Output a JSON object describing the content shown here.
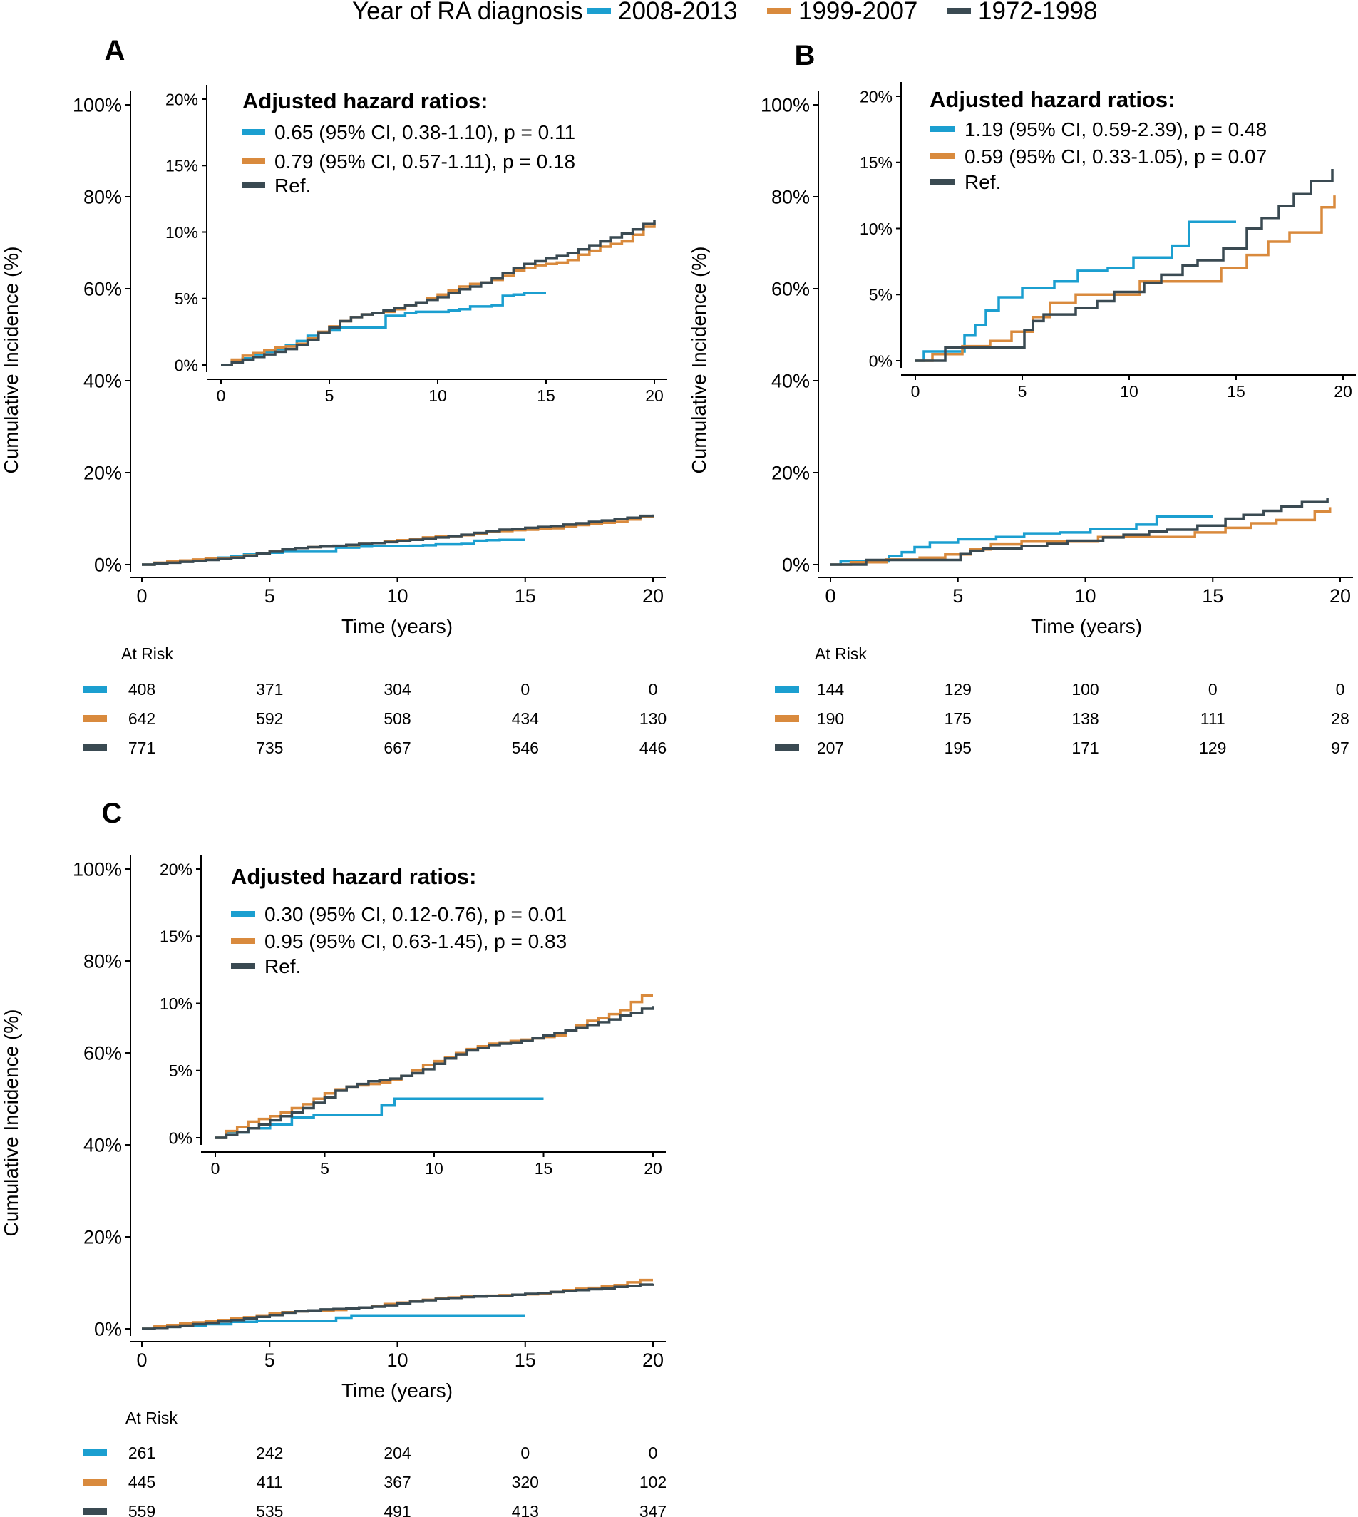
{
  "legend": {
    "title": "Year of RA diagnosis",
    "entries": [
      {
        "label": "2008-2013",
        "color": "#1b9fd0"
      },
      {
        "label": "1999-2007",
        "color": "#d98a3d"
      },
      {
        "label": "1972-1998",
        "color": "#3a4a52"
      }
    ]
  },
  "chart_data": [
    {
      "panel": "A",
      "type": "line",
      "step": true,
      "xlabel": "Time (years)",
      "ylabel": "Cumulative Incidence (%)",
      "xlim": [
        0,
        20
      ],
      "ylim": [
        0,
        100
      ],
      "xticks": [
        "0",
        "5",
        "10",
        "15",
        "20"
      ],
      "yticks": [
        "0%",
        "20%",
        "40%",
        "60%",
        "80%",
        "100%"
      ],
      "series": [
        {
          "name": "2008-2013",
          "x": [
            0,
            0.5,
            1,
            1.5,
            2,
            2.5,
            3,
            3.5,
            4,
            4.5,
            5,
            5.5,
            6,
            6.5,
            7,
            7.5,
            7.6,
            8,
            8.5,
            9,
            9.5,
            10,
            10.5,
            11,
            11.5,
            12,
            12.5,
            13,
            13.5,
            14,
            14.5,
            15
          ],
          "y": [
            0,
            0.3,
            0.5,
            0.8,
            1,
            1.2,
            1.5,
            1.8,
            2.2,
            2.4,
            2.6,
            2.8,
            2.8,
            2.8,
            2.8,
            2.8,
            3.7,
            3.7,
            3.9,
            4,
            4,
            4,
            4.1,
            4.2,
            4.4,
            4.4,
            4.5,
            5.2,
            5.3,
            5.4,
            5.4,
            5.4
          ]
        },
        {
          "name": "1999-2007",
          "x": [
            0,
            0.5,
            1,
            1.5,
            2,
            2.5,
            3,
            3.5,
            4,
            4.5,
            5,
            5.5,
            6,
            6.5,
            7,
            7.5,
            8,
            8.5,
            9,
            9.5,
            10,
            10.5,
            11,
            11.5,
            12,
            12.5,
            13,
            13.5,
            14,
            14.5,
            15,
            15.5,
            16,
            16.5,
            17,
            17.5,
            18,
            18.5,
            19,
            19.5,
            20
          ],
          "y": [
            0,
            0.4,
            0.7,
            0.9,
            1.1,
            1.3,
            1.4,
            1.6,
            2,
            2.5,
            2.9,
            3.3,
            3.6,
            3.8,
            3.9,
            4,
            4.2,
            4.5,
            4.7,
            5,
            5.3,
            5.6,
            5.9,
            6.1,
            6.2,
            6.4,
            6.7,
            7.1,
            7.3,
            7.5,
            7.6,
            7.7,
            7.9,
            8.3,
            8.6,
            8.9,
            9.1,
            9.3,
            9.8,
            10.4,
            10.7
          ]
        },
        {
          "name": "1972-1998",
          "x": [
            0,
            0.5,
            1,
            1.5,
            2,
            2.5,
            3,
            3.5,
            4,
            4.5,
            5,
            5.5,
            6,
            6.5,
            7,
            7.5,
            8,
            8.5,
            9,
            9.5,
            10,
            10.5,
            11,
            11.5,
            12,
            12.5,
            13,
            13.5,
            14,
            14.5,
            15,
            15.5,
            16,
            16.5,
            17,
            17.5,
            18,
            18.5,
            19,
            19.5,
            20
          ],
          "y": [
            0,
            0.2,
            0.4,
            0.6,
            0.8,
            1,
            1.2,
            1.5,
            1.9,
            2.4,
            2.8,
            3.3,
            3.6,
            3.8,
            3.9,
            4.1,
            4.3,
            4.5,
            4.7,
            4.9,
            5.1,
            5.4,
            5.7,
            5.9,
            6.2,
            6.5,
            6.9,
            7.3,
            7.6,
            7.8,
            8,
            8.2,
            8.4,
            8.7,
            9,
            9.3,
            9.6,
            9.9,
            10.2,
            10.6,
            10.9
          ]
        }
      ],
      "inset": {
        "xlim": [
          0,
          20
        ],
        "ylim": [
          0,
          20
        ],
        "xticks": [
          "0",
          "5",
          "10",
          "15",
          "20"
        ],
        "yticks": [
          "0%",
          "5%",
          "10%",
          "15%",
          "20%"
        ]
      },
      "hazard_ratios": {
        "title": "Adjusted hazard ratios:",
        "entries": [
          "0.65 (95% CI, 0.38-1.10), p = 0.11",
          "0.79 (95% CI, 0.57-1.11), p = 0.18",
          "Ref."
        ]
      },
      "at_risk": {
        "title": "At Risk",
        "times": [
          0,
          5,
          10,
          15,
          20
        ],
        "rows": [
          [
            "408",
            "371",
            "304",
            "0",
            "0"
          ],
          [
            "642",
            "592",
            "508",
            "434",
            "130"
          ],
          [
            "771",
            "735",
            "667",
            "546",
            "446"
          ]
        ]
      }
    },
    {
      "panel": "B",
      "type": "line",
      "step": true,
      "xlabel": "Time (years)",
      "ylabel": "Cumulative Incidence (%)",
      "xlim": [
        0,
        20
      ],
      "ylim": [
        0,
        100
      ],
      "xticks": [
        "0",
        "5",
        "10",
        "15",
        "20"
      ],
      "yticks": [
        "0%",
        "20%",
        "40%",
        "60%",
        "80%",
        "100%"
      ],
      "series": [
        {
          "name": "2008-2013",
          "x": [
            0,
            0.4,
            2,
            2.3,
            2.8,
            3.3,
            3.9,
            5,
            6.5,
            7.6,
            9,
            10.2,
            12,
            12.8,
            15
          ],
          "y": [
            0,
            0.7,
            0.7,
            1.9,
            2.7,
            3.8,
            4.8,
            5.5,
            6,
            6.8,
            7,
            7.8,
            8.7,
            10.5,
            10.5
          ]
        },
        {
          "name": "1999-2007",
          "x": [
            0,
            0.8,
            2.2,
            3.5,
            4.5,
            5.5,
            6.3,
            7.5,
            9,
            10.5,
            12,
            14.3,
            15.5,
            16.5,
            17.5,
            19,
            19.6
          ],
          "y": [
            0,
            0.5,
            1.1,
            1.5,
            2.2,
            3.3,
            4.4,
            5,
            5,
            6,
            6,
            7,
            8,
            9,
            9.7,
            11.6,
            12.5
          ]
        },
        {
          "name": "1972-1998",
          "x": [
            0,
            1.4,
            2.4,
            3.4,
            5.1,
            5.5,
            6,
            7.5,
            8.5,
            9.3,
            10.7,
            11.5,
            12.5,
            13.2,
            14.4,
            15.5,
            16.2,
            17,
            17.7,
            18.5,
            19.5
          ],
          "y": [
            0,
            1,
            1,
            1,
            2.3,
            3,
            3.5,
            4,
            4.5,
            5.2,
            5.9,
            6.5,
            7.2,
            7.6,
            8.5,
            10,
            10.8,
            11.7,
            12.6,
            13.6,
            14.5
          ]
        }
      ],
      "inset": {
        "xlim": [
          0,
          20
        ],
        "ylim": [
          0,
          20
        ],
        "xticks": [
          "0",
          "5",
          "10",
          "15",
          "20"
        ],
        "yticks": [
          "0%",
          "5%",
          "10%",
          "15%",
          "20%"
        ]
      },
      "hazard_ratios": {
        "title": "Adjusted hazard ratios:",
        "entries": [
          "1.19 (95% CI, 0.59-2.39), p = 0.48",
          "0.59 (95% CI, 0.33-1.05), p = 0.07",
          "Ref."
        ]
      },
      "at_risk": {
        "title": "At Risk",
        "times": [
          0,
          5,
          10,
          15,
          20
        ],
        "rows": [
          [
            "144",
            "129",
            "100",
            "0",
            "0"
          ],
          [
            "190",
            "175",
            "138",
            "111",
            "28"
          ],
          [
            "207",
            "195",
            "171",
            "129",
            "97"
          ]
        ]
      }
    },
    {
      "panel": "C",
      "type": "line",
      "step": true,
      "xlabel": "Time (years)",
      "ylabel": "Cumulative Incidence (%)",
      "xlim": [
        0,
        20
      ],
      "ylim": [
        0,
        100
      ],
      "xticks": [
        "0",
        "5",
        "10",
        "15",
        "20"
      ],
      "yticks": [
        "0%",
        "20%",
        "40%",
        "60%",
        "80%",
        "100%"
      ],
      "series": [
        {
          "name": "2008-2013",
          "x": [
            0,
            0.5,
            1.5,
            2.5,
            3.5,
            4.5,
            5.5,
            6.5,
            7.6,
            8.2,
            9,
            10,
            11,
            12,
            13,
            14,
            15
          ],
          "y": [
            0,
            0.4,
            0.7,
            1,
            1.5,
            1.7,
            1.7,
            1.7,
            2.4,
            2.9,
            2.9,
            2.9,
            2.9,
            2.9,
            2.9,
            2.9,
            2.9
          ]
        },
        {
          "name": "1999-2007",
          "x": [
            0,
            0.5,
            1,
            1.5,
            2,
            2.5,
            3,
            3.5,
            4,
            4.5,
            5,
            5.5,
            6,
            6.5,
            7,
            7.5,
            8,
            8.5,
            9,
            9.5,
            10,
            10.5,
            11,
            11.5,
            12,
            12.5,
            13,
            13.5,
            14,
            14.5,
            15,
            15.5,
            16,
            16.5,
            17,
            17.5,
            18,
            18.5,
            19,
            19.5,
            20
          ],
          "y": [
            0,
            0.5,
            0.8,
            1.2,
            1.4,
            1.6,
            1.9,
            2.2,
            2.5,
            2.9,
            3.3,
            3.6,
            3.8,
            3.9,
            4,
            4.1,
            4.3,
            4.6,
            5,
            5.4,
            5.7,
            6,
            6.3,
            6.6,
            6.8,
            7,
            7.1,
            7.2,
            7.3,
            7.4,
            7.5,
            7.6,
            8,
            8.4,
            8.7,
            8.9,
            9.2,
            9.5,
            10.1,
            10.6,
            10.6
          ]
        },
        {
          "name": "1972-1998",
          "x": [
            0,
            0.5,
            1,
            1.5,
            2,
            2.5,
            3,
            3.5,
            4,
            4.5,
            5,
            5.5,
            6,
            6.5,
            7,
            7.5,
            8,
            8.5,
            9,
            9.5,
            10,
            10.5,
            11,
            11.5,
            12,
            12.5,
            13,
            13.5,
            14,
            14.5,
            15,
            15.5,
            16,
            16.5,
            17,
            17.5,
            18,
            18.5,
            19,
            19.5,
            20
          ],
          "y": [
            0,
            0.2,
            0.4,
            0.7,
            1,
            1.3,
            1.6,
            1.9,
            2.2,
            2.6,
            3,
            3.5,
            3.8,
            4,
            4.2,
            4.3,
            4.4,
            4.6,
            4.8,
            5.1,
            5.5,
            5.9,
            6.2,
            6.5,
            6.7,
            6.9,
            7,
            7.1,
            7.2,
            7.4,
            7.6,
            7.8,
            8,
            8.2,
            8.4,
            8.6,
            8.8,
            9.1,
            9.3,
            9.6,
            9.8
          ]
        }
      ],
      "inset": {
        "xlim": [
          0,
          20
        ],
        "ylim": [
          0,
          20
        ],
        "xticks": [
          "0",
          "5",
          "10",
          "15",
          "20"
        ],
        "yticks": [
          "0%",
          "5%",
          "10%",
          "15%",
          "20%"
        ]
      },
      "hazard_ratios": {
        "title": "Adjusted hazard ratios:",
        "entries": [
          "0.30 (95% CI, 0.12-0.76), p = 0.01",
          "0.95 (95% CI, 0.63-1.45), p = 0.83",
          "Ref."
        ]
      },
      "at_risk": {
        "title": "At Risk",
        "times": [
          0,
          5,
          10,
          15,
          20
        ],
        "rows": [
          [
            "261",
            "242",
            "204",
            "0",
            "0"
          ],
          [
            "445",
            "411",
            "367",
            "320",
            "102"
          ],
          [
            "559",
            "535",
            "491",
            "413",
            "347"
          ]
        ]
      }
    }
  ]
}
